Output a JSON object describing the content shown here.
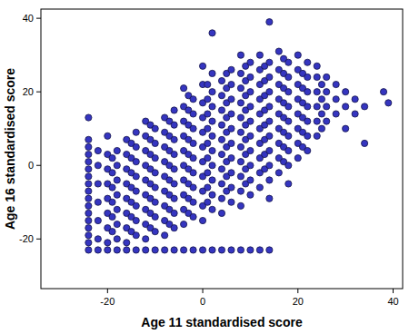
{
  "chart_data": {
    "type": "scatter",
    "x_label": "Age 11 standardised score",
    "y_label": "Age 16 standardised score",
    "color": "#3535c0",
    "marker": "circle",
    "grid": false,
    "xlim": [
      -34,
      42
    ],
    "ylim": [
      -33.5,
      42.5
    ],
    "xticks": [
      -20,
      0,
      20,
      40
    ],
    "yticks": [
      -20,
      0,
      20,
      40
    ],
    "x": [
      -24,
      -22,
      -20,
      -18,
      -16,
      -14,
      -12,
      -10,
      -8,
      -6,
      -4,
      -2,
      0,
      2,
      4,
      6,
      8,
      10,
      12,
      14,
      -24,
      -24,
      -24,
      -24,
      -24,
      -24,
      -24,
      -24,
      -24,
      -24,
      -24,
      -24,
      -24,
      -24,
      -24,
      -24,
      -22,
      -22,
      -22,
      -22,
      -22,
      -22,
      -20,
      -20,
      -20,
      -20,
      -20,
      -20,
      -20,
      -20,
      -19,
      -19,
      -19,
      -19,
      -19,
      -19,
      -18,
      -18,
      -18,
      -18,
      -18,
      -18,
      -18,
      -16,
      -16,
      -16,
      -16,
      -16,
      -16,
      -16,
      -16,
      -15,
      -15,
      -15,
      -15,
      -15,
      -15,
      -15,
      -14,
      -14,
      -14,
      -14,
      -14,
      -14,
      -14,
      -14,
      -12,
      -12,
      -12,
      -12,
      -12,
      -12,
      -12,
      -12,
      -12,
      -11,
      -11,
      -11,
      -11,
      -11,
      -11,
      -11,
      -11,
      -10,
      -10,
      -10,
      -10,
      -10,
      -10,
      -10,
      -10,
      -8,
      -8,
      -8,
      -8,
      -8,
      -8,
      -8,
      -8,
      -8,
      -7,
      -7,
      -7,
      -7,
      -7,
      -7,
      -7,
      -7,
      -6,
      -6,
      -6,
      -6,
      -6,
      -6,
      -6,
      -6,
      -6,
      -4,
      -4,
      -4,
      -4,
      -4,
      -4,
      -4,
      -4,
      -4,
      -4,
      -3,
      -3,
      -3,
      -3,
      -3,
      -3,
      -3,
      -3,
      -3,
      -2,
      -2,
      -2,
      -2,
      -2,
      -2,
      -2,
      -2,
      -2,
      0,
      0,
      0,
      0,
      0,
      0,
      0,
      0,
      0,
      0,
      0,
      1,
      1,
      1,
      1,
      1,
      1,
      1,
      1,
      1,
      2,
      2,
      2,
      2,
      2,
      2,
      2,
      2,
      2,
      2,
      2,
      4,
      4,
      4,
      4,
      4,
      4,
      4,
      4,
      4,
      4,
      5,
      5,
      5,
      5,
      5,
      5,
      5,
      5,
      5,
      6,
      6,
      6,
      6,
      6,
      6,
      6,
      6,
      6,
      6,
      8,
      8,
      8,
      8,
      8,
      8,
      8,
      8,
      8,
      8,
      8,
      9,
      9,
      9,
      9,
      9,
      9,
      9,
      9,
      9,
      10,
      10,
      10,
      10,
      10,
      10,
      10,
      10,
      10,
      10,
      12,
      12,
      12,
      12,
      12,
      12,
      12,
      12,
      12,
      12,
      13,
      13,
      13,
      13,
      13,
      13,
      13,
      13,
      14,
      14,
      14,
      14,
      14,
      14,
      14,
      14,
      14,
      14,
      14,
      16,
      16,
      16,
      16,
      16,
      16,
      16,
      16,
      16,
      17,
      17,
      17,
      17,
      17,
      17,
      17,
      17,
      18,
      18,
      18,
      18,
      18,
      18,
      18,
      18,
      18,
      20,
      20,
      20,
      20,
      20,
      20,
      20,
      20,
      21,
      21,
      21,
      21,
      21,
      21,
      22,
      22,
      22,
      22,
      22,
      22,
      22,
      24,
      24,
      24,
      24,
      24,
      24,
      25,
      25,
      25,
      25,
      26,
      26,
      26,
      26,
      28,
      28,
      28,
      30,
      30,
      30,
      32,
      32,
      34,
      34,
      38,
      39
    ],
    "values": [
      -23,
      -23,
      -23,
      -23,
      -23,
      -23,
      -23,
      -23,
      -23,
      -23,
      -23,
      -23,
      -23,
      -23,
      -23,
      -23,
      -23,
      -23,
      -23,
      -23,
      -21,
      -19,
      -17,
      -15,
      -13,
      -11,
      -9,
      -7,
      -5,
      -3,
      -1,
      1,
      3,
      5,
      7,
      13,
      -20,
      -15,
      -10,
      -5,
      0,
      4,
      -21,
      -17,
      -13,
      -9,
      -5,
      -1,
      3,
      8,
      -18,
      -14,
      -10,
      -6,
      -2,
      2,
      -20,
      -16,
      -12,
      -8,
      -4,
      0,
      4,
      -21,
      -17,
      -13,
      -9,
      -5,
      -1,
      3,
      7,
      -18,
      -14,
      -10,
      -6,
      -2,
      2,
      6,
      -19,
      -15,
      -11,
      -7,
      -3,
      1,
      5,
      9,
      -20,
      -16,
      -12,
      -8,
      -4,
      0,
      4,
      8,
      12,
      -17,
      -13,
      -9,
      -5,
      -1,
      3,
      7,
      11,
      -18,
      -14,
      -10,
      -6,
      -2,
      2,
      6,
      10,
      -19,
      -15,
      -11,
      -7,
      -3,
      1,
      5,
      9,
      13,
      -16,
      -12,
      -8,
      -4,
      0,
      4,
      8,
      12,
      -17,
      -13,
      -9,
      -5,
      -1,
      3,
      7,
      11,
      15,
      -16,
      -12,
      -8,
      -4,
      0,
      4,
      8,
      12,
      16,
      21,
      -13,
      -9,
      -5,
      -1,
      3,
      7,
      11,
      15,
      19,
      -14,
      -10,
      -6,
      -2,
      2,
      6,
      10,
      14,
      18,
      -15,
      -11,
      -7,
      -3,
      1,
      5,
      9,
      13,
      17,
      22,
      27,
      -10,
      -6,
      -2,
      2,
      6,
      10,
      14,
      18,
      22,
      -12,
      -8,
      -4,
      0,
      4,
      8,
      12,
      16,
      20,
      25,
      36,
      -13,
      -9,
      -5,
      -1,
      3,
      7,
      11,
      15,
      19,
      23,
      -7,
      -3,
      1,
      5,
      9,
      13,
      17,
      21,
      25,
      -10,
      -6,
      -2,
      2,
      6,
      10,
      14,
      18,
      22,
      26,
      -11,
      -7,
      -3,
      1,
      5,
      9,
      13,
      17,
      21,
      25,
      30,
      -5,
      -1,
      3,
      7,
      11,
      15,
      19,
      23,
      27,
      -8,
      -4,
      0,
      4,
      8,
      12,
      16,
      20,
      24,
      28,
      -6,
      -2,
      2,
      6,
      10,
      14,
      18,
      22,
      26,
      30,
      -1,
      3,
      7,
      11,
      15,
      19,
      23,
      27,
      -9,
      -4,
      0,
      4,
      8,
      12,
      16,
      20,
      24,
      28,
      39,
      -2,
      2,
      6,
      10,
      14,
      18,
      22,
      26,
      31,
      1,
      5,
      9,
      13,
      17,
      21,
      25,
      29,
      -5,
      0,
      4,
      8,
      12,
      16,
      20,
      24,
      28,
      2,
      6,
      10,
      14,
      18,
      22,
      26,
      30,
      5,
      9,
      13,
      17,
      21,
      25,
      4,
      8,
      12,
      16,
      20,
      24,
      28,
      8,
      12,
      16,
      20,
      24,
      27,
      10,
      14,
      18,
      22,
      12,
      16,
      20,
      24,
      14,
      18,
      22,
      10,
      16,
      20,
      14,
      18,
      6,
      16,
      20,
      17
    ]
  }
}
